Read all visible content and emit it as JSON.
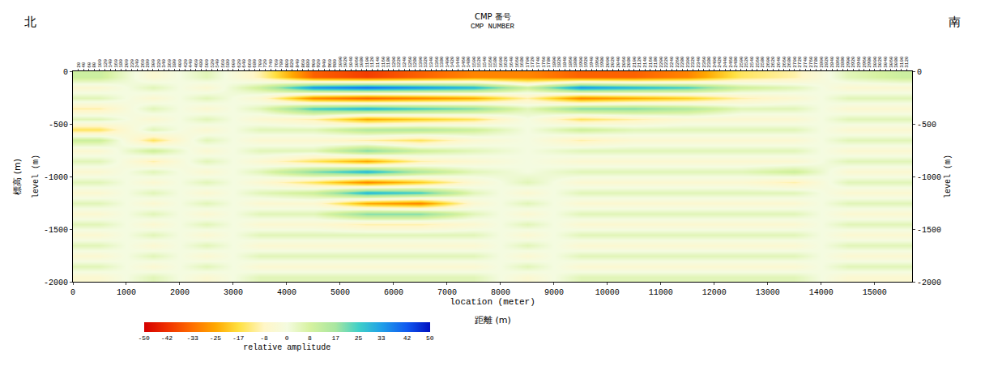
{
  "chart_data": {
    "type": "heatmap",
    "title_left": "北",
    "title_right": "南",
    "top_title": "CMP 番号",
    "top_title_en": "CMP NUMBER",
    "x_label": "location (meter)",
    "x_label_ja": "距離 (m)",
    "y_label": "level (m)",
    "y_label_ja": "標高 (m)",
    "y2_label": "level (m)",
    "grid": false,
    "x": [
      500,
      1500,
      2500,
      3500,
      4500,
      5500,
      6500,
      7500,
      8500,
      9500,
      10500,
      11500,
      12500,
      13500,
      14500,
      15500
    ],
    "y": [
      -50,
      -150,
      -250,
      -350,
      -450,
      -550,
      -650,
      -750,
      -850,
      -950,
      -1050,
      -1150,
      -1250,
      -1350,
      -1450,
      -1550,
      -1650,
      -1750,
      -1850,
      -1950
    ],
    "cells": [
      [
        10,
        -5,
        5,
        -10,
        -35,
        -40,
        -35,
        -30,
        -30,
        -35,
        -35,
        -30,
        -15,
        -10,
        5,
        10
      ],
      [
        -5,
        5,
        -5,
        10,
        35,
        40,
        35,
        30,
        10,
        35,
        30,
        25,
        10,
        5,
        -5,
        -5
      ],
      [
        5,
        -5,
        5,
        -5,
        -30,
        -35,
        -30,
        -25,
        -10,
        -30,
        -25,
        -20,
        -10,
        -5,
        5,
        5
      ],
      [
        -10,
        5,
        -5,
        5,
        25,
        30,
        25,
        20,
        5,
        20,
        20,
        15,
        5,
        5,
        -5,
        -5
      ],
      [
        5,
        -5,
        5,
        -5,
        -10,
        -25,
        -20,
        -15,
        0,
        -15,
        -10,
        -5,
        -5,
        -5,
        5,
        5
      ],
      [
        -15,
        5,
        -5,
        5,
        5,
        15,
        15,
        10,
        0,
        10,
        5,
        5,
        5,
        5,
        -5,
        -5
      ],
      [
        10,
        -15,
        5,
        -5,
        -5,
        -10,
        -15,
        -5,
        0,
        -10,
        -5,
        -5,
        -5,
        -5,
        5,
        5
      ],
      [
        -5,
        10,
        -5,
        5,
        5,
        20,
        10,
        5,
        0,
        5,
        5,
        5,
        5,
        5,
        -5,
        -5
      ],
      [
        5,
        -10,
        5,
        -5,
        -15,
        -25,
        -10,
        -5,
        0,
        -5,
        -5,
        -5,
        -5,
        -5,
        5,
        5
      ],
      [
        -5,
        5,
        -5,
        5,
        20,
        30,
        15,
        5,
        0,
        5,
        5,
        5,
        5,
        10,
        -5,
        -5
      ],
      [
        5,
        -5,
        5,
        -5,
        -15,
        -30,
        -20,
        -5,
        5,
        -5,
        -5,
        -5,
        -5,
        -10,
        5,
        5
      ],
      [
        -5,
        5,
        -5,
        5,
        10,
        30,
        25,
        5,
        -5,
        5,
        5,
        5,
        5,
        5,
        -5,
        -5
      ],
      [
        5,
        -5,
        5,
        -5,
        -5,
        -25,
        -30,
        -5,
        5,
        -5,
        -5,
        -5,
        -5,
        -5,
        5,
        5
      ],
      [
        -5,
        5,
        -5,
        5,
        5,
        20,
        20,
        5,
        -5,
        5,
        5,
        5,
        5,
        5,
        -5,
        -5
      ],
      [
        5,
        -5,
        5,
        -5,
        -5,
        -10,
        -10,
        -5,
        5,
        -5,
        -5,
        -5,
        -5,
        -5,
        5,
        5
      ],
      [
        -5,
        5,
        -5,
        5,
        5,
        5,
        5,
        5,
        -5,
        5,
        5,
        5,
        5,
        5,
        -5,
        -5
      ],
      [
        5,
        -5,
        5,
        -5,
        -5,
        -5,
        -5,
        -5,
        5,
        -5,
        -5,
        -5,
        -5,
        -5,
        5,
        5
      ],
      [
        -5,
        5,
        -5,
        5,
        5,
        5,
        5,
        5,
        -5,
        5,
        5,
        5,
        5,
        5,
        -5,
        -5
      ],
      [
        5,
        -5,
        5,
        -5,
        -5,
        -5,
        -5,
        -5,
        5,
        -5,
        -5,
        -5,
        -5,
        -5,
        5,
        5
      ],
      [
        -5,
        5,
        -5,
        5,
        5,
        5,
        5,
        5,
        -5,
        5,
        5,
        5,
        5,
        5,
        -5,
        -5
      ]
    ],
    "xlim": [
      0,
      15700
    ],
    "xticks": [
      0,
      1000,
      2000,
      3000,
      4000,
      5000,
      6000,
      7000,
      8000,
      9000,
      10000,
      11000,
      12000,
      13000,
      14000,
      15000
    ],
    "ylim": [
      -2000,
      0
    ],
    "yticks": [
      0,
      -500,
      -1000,
      -1500,
      -2000
    ],
    "y2lim": [
      -2000,
      0
    ],
    "y2ticks": [
      0,
      -500,
      -1000,
      -1500,
      -2000
    ],
    "cmp_axis": {
      "xlim": [
        0,
        3140
      ],
      "xticks": [
        20,
        40,
        60,
        80,
        100,
        120,
        140,
        160,
        180,
        200,
        220,
        240,
        260,
        280,
        300,
        320,
        340,
        360,
        380,
        400,
        420,
        440,
        460,
        480,
        500,
        520,
        540,
        560,
        580,
        600,
        620,
        640,
        660,
        680,
        700,
        720,
        740,
        760,
        780,
        800,
        820,
        840,
        860,
        880,
        900,
        920,
        940,
        960,
        980,
        1000,
        1020,
        1040,
        1060,
        1080,
        1100,
        1120,
        1140,
        1160,
        1180,
        1200,
        1220,
        1240,
        1260,
        1280,
        1300,
        1320,
        1340,
        1360,
        1380,
        1400,
        1420,
        1440,
        1460,
        1480,
        1500,
        1520,
        1540,
        1560,
        1580,
        1600,
        1620,
        1640,
        1660,
        1680,
        1700,
        1720,
        1740,
        1760,
        1780,
        1800,
        1820,
        1840,
        1860,
        1880,
        1900,
        1920,
        1940,
        1960,
        1980,
        2000,
        2020,
        2040,
        2060,
        2080,
        2100,
        2120,
        2140,
        2160,
        2180,
        2200,
        2220,
        2240,
        2260,
        2280,
        2300,
        2320,
        2340,
        2360,
        2380,
        2400,
        2420,
        2440,
        2460,
        2480,
        2500,
        2520,
        2540,
        2560,
        2580,
        2600,
        2620,
        2640,
        2660,
        2680,
        2700,
        2720,
        2740,
        2760,
        2780,
        2800,
        2820,
        2840,
        2860,
        2880,
        2900,
        2920,
        2940,
        2960,
        2980,
        3000,
        3020,
        3040,
        3060,
        3080,
        3100,
        3120
      ]
    },
    "colorbar": {
      "title": "relative amplitude",
      "range": [
        -50,
        50
      ],
      "ticks": [
        -50,
        -42,
        -33,
        -25,
        -17,
        -8,
        0,
        8,
        17,
        25,
        33,
        42,
        50
      ],
      "colors": [
        "#d40000",
        "#f03000",
        "#ff7000",
        "#ffa800",
        "#ffe040",
        "#fff6c8",
        "#f4fbe0",
        "#d6f2a0",
        "#a8e6a0",
        "#40d0c8",
        "#20a0e8",
        "#1058f0",
        "#0010c0"
      ]
    }
  }
}
